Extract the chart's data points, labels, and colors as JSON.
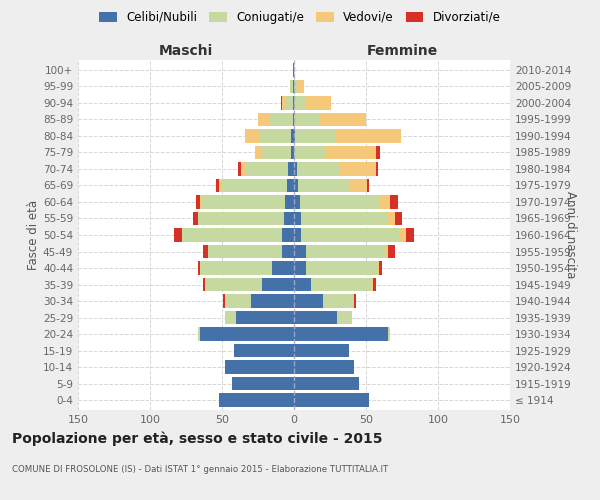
{
  "age_groups": [
    "100+",
    "95-99",
    "90-94",
    "85-89",
    "80-84",
    "75-79",
    "70-74",
    "65-69",
    "60-64",
    "55-59",
    "50-54",
    "45-49",
    "40-44",
    "35-39",
    "30-34",
    "25-29",
    "20-24",
    "15-19",
    "10-14",
    "5-9",
    "0-4"
  ],
  "birth_years": [
    "≤ 1914",
    "1915-1919",
    "1920-1924",
    "1925-1929",
    "1930-1934",
    "1935-1939",
    "1940-1944",
    "1945-1949",
    "1950-1954",
    "1955-1959",
    "1960-1964",
    "1965-1969",
    "1970-1974",
    "1975-1979",
    "1980-1984",
    "1985-1989",
    "1990-1994",
    "1995-1999",
    "2000-2004",
    "2005-2009",
    "2010-2014"
  ],
  "male": {
    "celibi": [
      1,
      1,
      1,
      1,
      2,
      2,
      4,
      5,
      6,
      7,
      8,
      8,
      15,
      22,
      30,
      40,
      65,
      42,
      48,
      43,
      52
    ],
    "coniugati": [
      0,
      2,
      5,
      16,
      22,
      20,
      30,
      45,
      58,
      60,
      70,
      52,
      50,
      40,
      18,
      8,
      2,
      0,
      0,
      0,
      0
    ],
    "vedovi": [
      0,
      0,
      2,
      8,
      10,
      5,
      3,
      2,
      1,
      0,
      0,
      0,
      0,
      0,
      0,
      0,
      0,
      0,
      0,
      0,
      0
    ],
    "divorziati": [
      0,
      0,
      1,
      0,
      0,
      0,
      2,
      2,
      3,
      3,
      5,
      3,
      2,
      1,
      1,
      0,
      0,
      0,
      0,
      0,
      0
    ]
  },
  "female": {
    "nubili": [
      0,
      0,
      0,
      0,
      1,
      0,
      2,
      3,
      4,
      5,
      5,
      8,
      8,
      12,
      20,
      30,
      65,
      38,
      42,
      45,
      52
    ],
    "coniugate": [
      0,
      2,
      8,
      18,
      28,
      22,
      30,
      36,
      55,
      60,
      68,
      55,
      50,
      42,
      22,
      10,
      2,
      0,
      0,
      0,
      0
    ],
    "vedove": [
      0,
      5,
      18,
      32,
      45,
      35,
      25,
      12,
      8,
      5,
      5,
      2,
      1,
      1,
      0,
      0,
      0,
      0,
      0,
      0,
      0
    ],
    "divorziate": [
      0,
      0,
      0,
      0,
      0,
      3,
      1,
      1,
      5,
      5,
      5,
      5,
      2,
      2,
      1,
      0,
      0,
      0,
      0,
      0,
      0
    ]
  },
  "colors": {
    "celibi": "#4472a8",
    "coniugati": "#c5d9a0",
    "vedovi": "#f5c87a",
    "divorziati": "#d73027"
  },
  "xlim": 150,
  "title": "Popolazione per età, sesso e stato civile - 2015",
  "subtitle": "COMUNE DI FROSOLONE (IS) - Dati ISTAT 1° gennaio 2015 - Elaborazione TUTTITALIA.IT",
  "xlabel_left": "Maschi",
  "xlabel_right": "Femmine",
  "ylabel_left": "Fasce di età",
  "ylabel_right": "Anni di nascita",
  "bg_color": "#eeeeee",
  "plot_bg": "#ffffff",
  "legend_labels": [
    "Celibi/Nubili",
    "Coniugati/e",
    "Vedovi/e",
    "Divorziati/e"
  ]
}
